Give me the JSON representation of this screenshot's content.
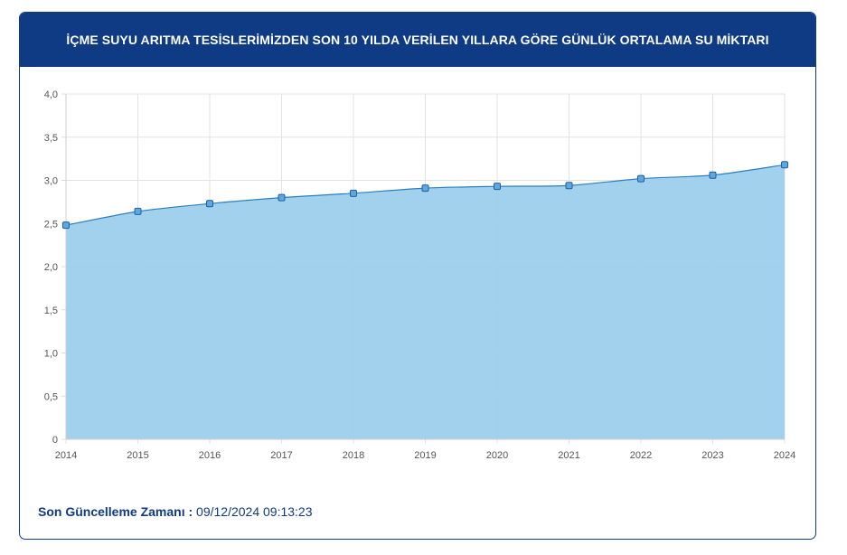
{
  "title": "İÇME SUYU ARITMA TESİSLERİMİZDEN SON 10 YILDA VERİLEN YILLARA GÖRE GÜNLÜK ORTALAMA SU MİKTARI",
  "footer": {
    "label": "Son Güncelleme Zamanı :",
    "value": "09/12/2024 09:13:23"
  },
  "colors": {
    "header_bg": "#0f3a84",
    "area_fill": "#9ccfeb",
    "line": "#2b7fc1",
    "point_fill": "#5da9dc",
    "point_stroke": "#1e5fa0"
  },
  "chart_data": {
    "type": "area",
    "categories": [
      "2014",
      "2015",
      "2016",
      "2017",
      "2018",
      "2019",
      "2020",
      "2021",
      "2022",
      "2023",
      "2024"
    ],
    "series": [
      {
        "values": [
          2.48,
          2.64,
          2.73,
          2.8,
          2.85,
          2.91,
          2.93,
          2.94,
          3.02,
          3.06,
          3.18
        ]
      }
    ],
    "ylim": [
      0,
      4
    ],
    "yticks": [
      "0",
      "0,5",
      "1,0",
      "1,5",
      "2,0",
      "2,5",
      "3,0",
      "3,5",
      "4,0"
    ],
    "ytick_values": [
      0,
      0.5,
      1.0,
      1.5,
      2.0,
      2.5,
      3.0,
      3.5,
      4.0
    ],
    "grid": true,
    "legend": "none"
  }
}
